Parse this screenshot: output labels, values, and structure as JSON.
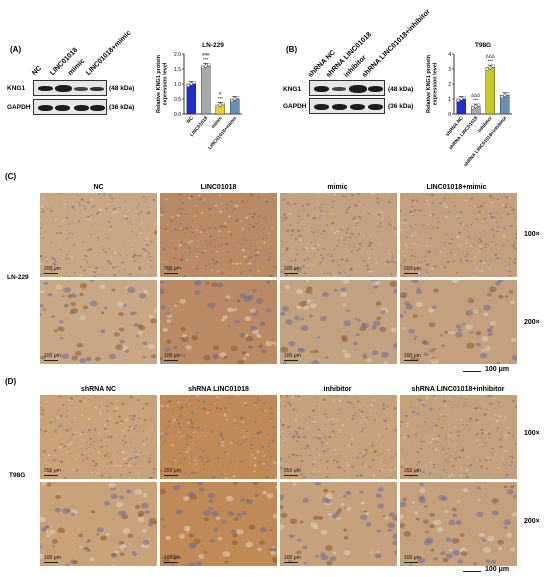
{
  "panel_a": {
    "label": "(A)",
    "lanes": [
      "NC",
      "LINC01018",
      "mimic",
      "LINC01018+mimic"
    ],
    "rows": [
      "KNG1",
      "GAPDH"
    ],
    "kda": [
      "(48 kDa)",
      "(36 kDa)"
    ]
  },
  "panel_b": {
    "label": "(B)",
    "lanes": [
      "shRNA NC",
      "shRNA LINC01018",
      "inhibitor",
      "shRNA LINC01018+inhibitor"
    ],
    "rows": [
      "KNG1",
      "GAPDH"
    ],
    "kda": [
      "(48 kDa)",
      "(36 kDa)"
    ]
  },
  "panel_c": {
    "label": "(C)",
    "columns": [
      "NC",
      "LINC01018",
      "mimic",
      "LINC01018+mimic"
    ],
    "row_label": "LN-229",
    "magnifications": [
      "100×",
      "200×"
    ],
    "scale_labels": [
      "200 μm",
      "100 μm"
    ],
    "bottom_scale": "100 μm"
  },
  "panel_d": {
    "label": "(D)",
    "columns": [
      "shRNA NC",
      "shRNA LINC01018",
      "inhibitor",
      "shRNA LINC01018+inhibitor"
    ],
    "row_label": "T98G",
    "magnifications": [
      "100×",
      "200×"
    ],
    "scale_labels": [
      "200 μm",
      "100 μm"
    ],
    "bottom_scale": "100 μm"
  },
  "chart_data": [
    {
      "type": "bar",
      "title": "LN-229",
      "ylabel": "Relative KNG1 protein expression level",
      "categories": [
        "NC",
        "LINC01018",
        "mimic",
        "LINC01018+mimic"
      ],
      "values": [
        1.0,
        1.6,
        0.3,
        0.5
      ],
      "ylim": [
        0,
        2.0
      ],
      "yticks": [
        "0.0",
        "0.5",
        "1.0",
        "1.5",
        "2.0"
      ],
      "colors": [
        "#1d2fd0",
        "#a8a8a8",
        "#e8d42a",
        "#6b8fb3"
      ],
      "annotations": [
        {
          "category": "LINC01018",
          "text": "###\n***"
        },
        {
          "category": "mimic",
          "text": "#\n***"
        }
      ]
    },
    {
      "type": "bar",
      "title": "T98G",
      "ylabel": "Relative KNG1 protein expression level",
      "categories": [
        "shRNA NC",
        "shRNA LINC01018",
        "inhibitor",
        "shRNA LINC01018+inhibitor"
      ],
      "values": [
        1.0,
        0.5,
        3.1,
        1.25
      ],
      "ylim": [
        0,
        4
      ],
      "yticks": [
        "0",
        "1",
        "2",
        "3",
        "4"
      ],
      "colors": [
        "#1d2fd0",
        "#a8a8a8",
        "#c8c82a",
        "#6b8fb3"
      ],
      "annotations": [
        {
          "category": "shRNA LINC01018",
          "text": "ΔΔΔ\n***"
        },
        {
          "category": "inhibitor",
          "text": "ΔΔΔ\n***"
        }
      ]
    }
  ]
}
